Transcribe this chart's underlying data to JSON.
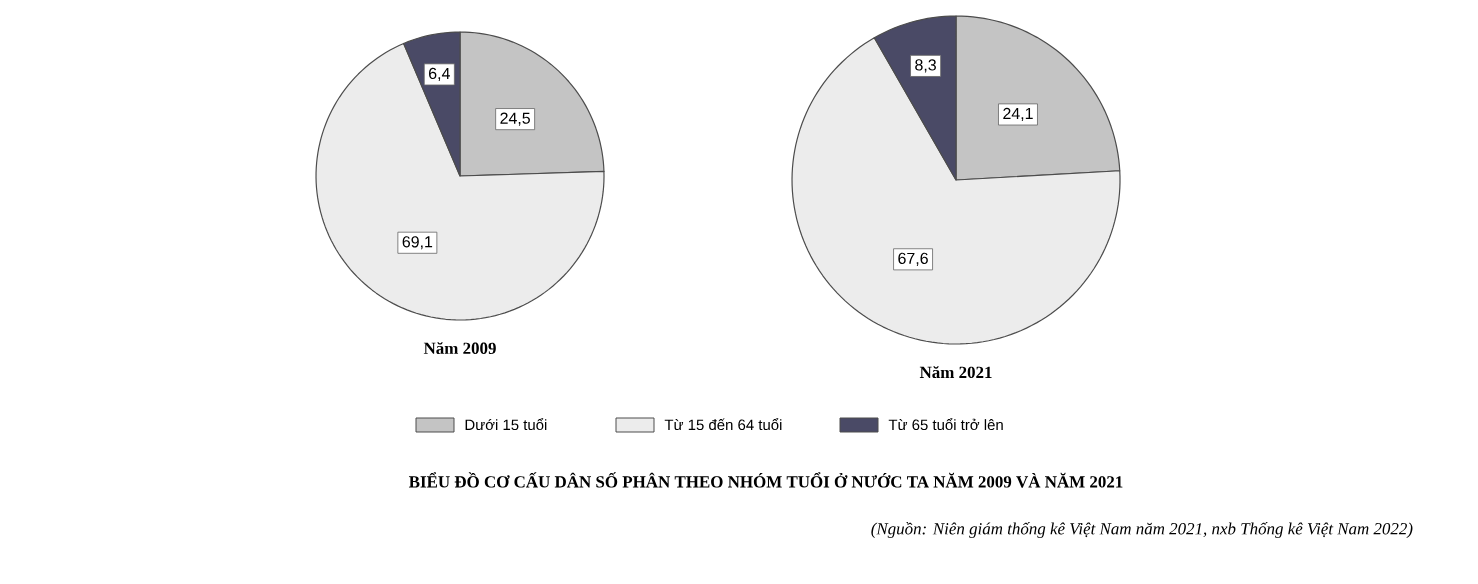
{
  "chart_data": [
    {
      "type": "pie",
      "title": "Năm 2009",
      "categories": [
        "Dưới 15 tuổi",
        "Từ 15 đến 64 tuổi",
        "Từ 65 tuổi trở lên"
      ],
      "values": [
        24.5,
        69.1,
        6.4
      ],
      "value_labels": [
        "24,5",
        "69,1",
        "6,4"
      ],
      "colors": [
        "#c4c4c4",
        "#ececec",
        "#4a4a66"
      ],
      "legend": "bottom"
    },
    {
      "type": "pie",
      "title": "Năm 2021",
      "categories": [
        null,
        null,
        null
      ],
      "values": [
        24.1,
        67.6,
        8.3
      ],
      "value_labels": [
        "24,1",
        "67,6",
        "8,3"
      ],
      "colors": [
        "#c4c4c4",
        "#ececec",
        "#4a4a66"
      ]
    },
    {
      "type": "other",
      "title": "BIỂU ĐỒ CƠ CẤU DÂN SỐ PHÂN THEO NHÓM TUỔI Ở NƯỚC TA NĂM 2009 VÀ NĂM 2021",
      "annotations": [
        "*(Nguồn: Niên giám thống kê Việt Nam năm 2021, nxb Thống kê Việt Nam 2022)*"
      ]
    }
  ]
}
